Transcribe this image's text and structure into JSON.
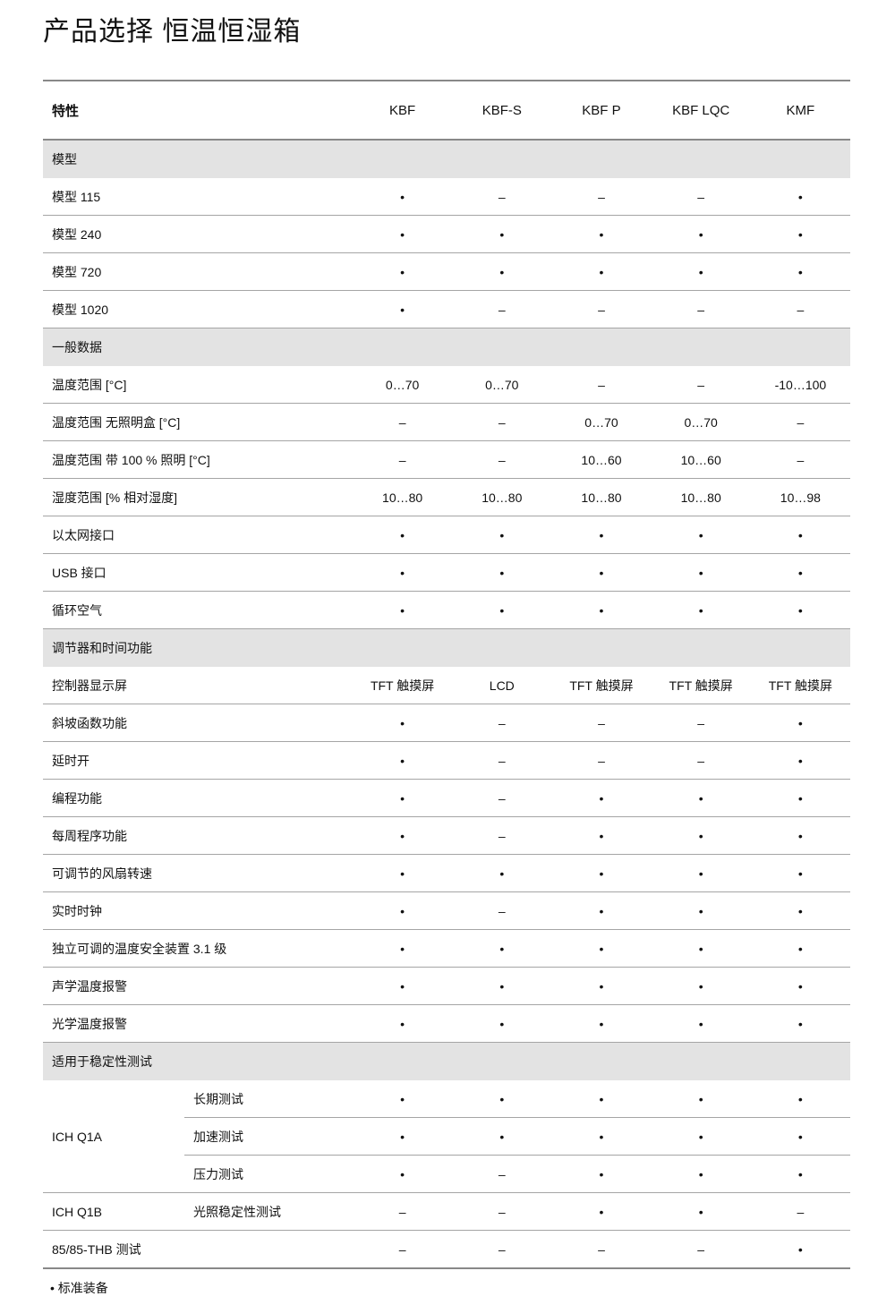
{
  "title": "产品选择 恒温恒湿箱",
  "header": {
    "feature": "特性",
    "models": [
      "KBF",
      "KBF-S",
      "KBF P",
      "KBF LQC",
      "KMF"
    ]
  },
  "colors": {
    "section_bg": "#e3e3e3",
    "rule": "#888888"
  },
  "rows": [
    {
      "section": "模型"
    },
    {
      "label": "模型 115",
      "values": [
        "•",
        "–",
        "–",
        "–",
        "•"
      ]
    },
    {
      "label": "模型 240",
      "values": [
        "•",
        "•",
        "•",
        "•",
        "•"
      ]
    },
    {
      "label": "模型 720",
      "values": [
        "•",
        "•",
        "•",
        "•",
        "•"
      ]
    },
    {
      "label": "模型 1020",
      "values": [
        "•",
        "–",
        "–",
        "–",
        "–"
      ]
    },
    {
      "section": "一般数据"
    },
    {
      "label": "温度范围 [°C]",
      "values": [
        "0…70",
        "0…70",
        "–",
        "–",
        "-10…100"
      ]
    },
    {
      "label": "温度范围 无照明盒 [°C]",
      "values": [
        "–",
        "–",
        "0…70",
        "0…70",
        "–"
      ]
    },
    {
      "label": "温度范围 带 100 % 照明 [°C]",
      "values": [
        "–",
        "–",
        "10…60",
        "10…60",
        "–"
      ]
    },
    {
      "label": "湿度范围 [% 相对湿度]",
      "values": [
        "10…80",
        "10…80",
        "10…80",
        "10…80",
        "10…98"
      ]
    },
    {
      "label": "以太网接口",
      "values": [
        "•",
        "•",
        "•",
        "•",
        "•"
      ]
    },
    {
      "label": "USB 接口",
      "values": [
        "•",
        "•",
        "•",
        "•",
        "•"
      ]
    },
    {
      "label": "循环空气",
      "values": [
        "•",
        "•",
        "•",
        "•",
        "•"
      ]
    },
    {
      "section": "调节器和时间功能"
    },
    {
      "label": "控制器显示屏",
      "values": [
        "TFT 触摸屏",
        "LCD",
        "TFT 触摸屏",
        "TFT 触摸屏",
        "TFT 触摸屏"
      ]
    },
    {
      "label": "斜坡函数功能",
      "values": [
        "•",
        "–",
        "–",
        "–",
        "•"
      ]
    },
    {
      "label": "延时开",
      "values": [
        "•",
        "–",
        "–",
        "–",
        "•"
      ]
    },
    {
      "label": "编程功能",
      "values": [
        "•",
        "–",
        "•",
        "•",
        "•"
      ]
    },
    {
      "label": "每周程序功能",
      "values": [
        "•",
        "–",
        "•",
        "•",
        "•"
      ]
    },
    {
      "label": "可调节的风扇转速",
      "values": [
        "•",
        "•",
        "•",
        "•",
        "•"
      ]
    },
    {
      "label": "实时时钟",
      "values": [
        "•",
        "–",
        "•",
        "•",
        "•"
      ]
    },
    {
      "label": "独立可调的温度安全装置 3.1 级",
      "values": [
        "•",
        "•",
        "•",
        "•",
        "•"
      ]
    },
    {
      "label": "声学温度报警",
      "values": [
        "•",
        "•",
        "•",
        "•",
        "•"
      ]
    },
    {
      "label": "光学温度报警",
      "values": [
        "•",
        "•",
        "•",
        "•",
        "•"
      ]
    },
    {
      "section": "适用于稳定性测试"
    },
    {
      "group": "ICH Q1A",
      "span": 3,
      "sub": "长期测试",
      "values": [
        "•",
        "•",
        "•",
        "•",
        "•"
      ]
    },
    {
      "sub": "加速测试",
      "values": [
        "•",
        "•",
        "•",
        "•",
        "•"
      ]
    },
    {
      "sub": "压力测试",
      "values": [
        "•",
        "–",
        "•",
        "•",
        "•"
      ]
    },
    {
      "group": "ICH Q1B",
      "span": 1,
      "sub": "光照稳定性测试",
      "values": [
        "–",
        "–",
        "•",
        "•",
        "–"
      ]
    },
    {
      "label": "85/85-THB 测试",
      "values": [
        "–",
        "–",
        "–",
        "–",
        "•"
      ]
    }
  ],
  "footnote": "• 标准装备"
}
